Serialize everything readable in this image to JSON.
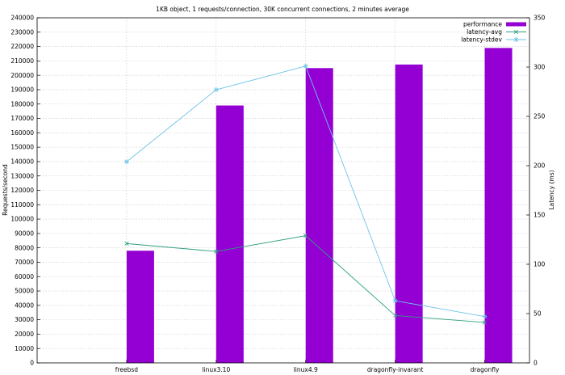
{
  "chart_data": {
    "type": "bar",
    "title": "1KB object, 1 requests/connection, 30K concurrent connections, 2 minutes average",
    "categories": [
      "freebsd",
      "linux3.10",
      "linux4.9",
      "dragonfly-invarant",
      "dragonfly"
    ],
    "ylabel": "Requests/second",
    "y2label": "Latency (ms)",
    "ylim": [
      0,
      240000
    ],
    "y2lim": [
      0,
      350
    ],
    "yticks": [
      0,
      10000,
      20000,
      30000,
      40000,
      50000,
      60000,
      70000,
      80000,
      90000,
      100000,
      110000,
      120000,
      130000,
      140000,
      150000,
      160000,
      170000,
      180000,
      190000,
      200000,
      210000,
      220000,
      230000,
      240000
    ],
    "y2ticks": [
      0,
      50,
      100,
      150,
      200,
      250,
      300,
      350
    ],
    "grid": true,
    "legend_position": "top-right",
    "series": [
      {
        "name": "performance",
        "kind": "bar",
        "axis": "left",
        "color": "#9400d3",
        "values": [
          78000,
          179000,
          205000,
          207500,
          219000
        ]
      },
      {
        "name": "latency-avg",
        "kind": "line",
        "axis": "right",
        "marker": "x",
        "color": "#2e9f82",
        "values": [
          121,
          113,
          129,
          48,
          41
        ]
      },
      {
        "name": "latency-stdev",
        "kind": "line",
        "axis": "right",
        "marker": "star",
        "color": "#6ec4e8",
        "values": [
          204,
          277,
          301,
          63,
          47
        ]
      }
    ]
  }
}
